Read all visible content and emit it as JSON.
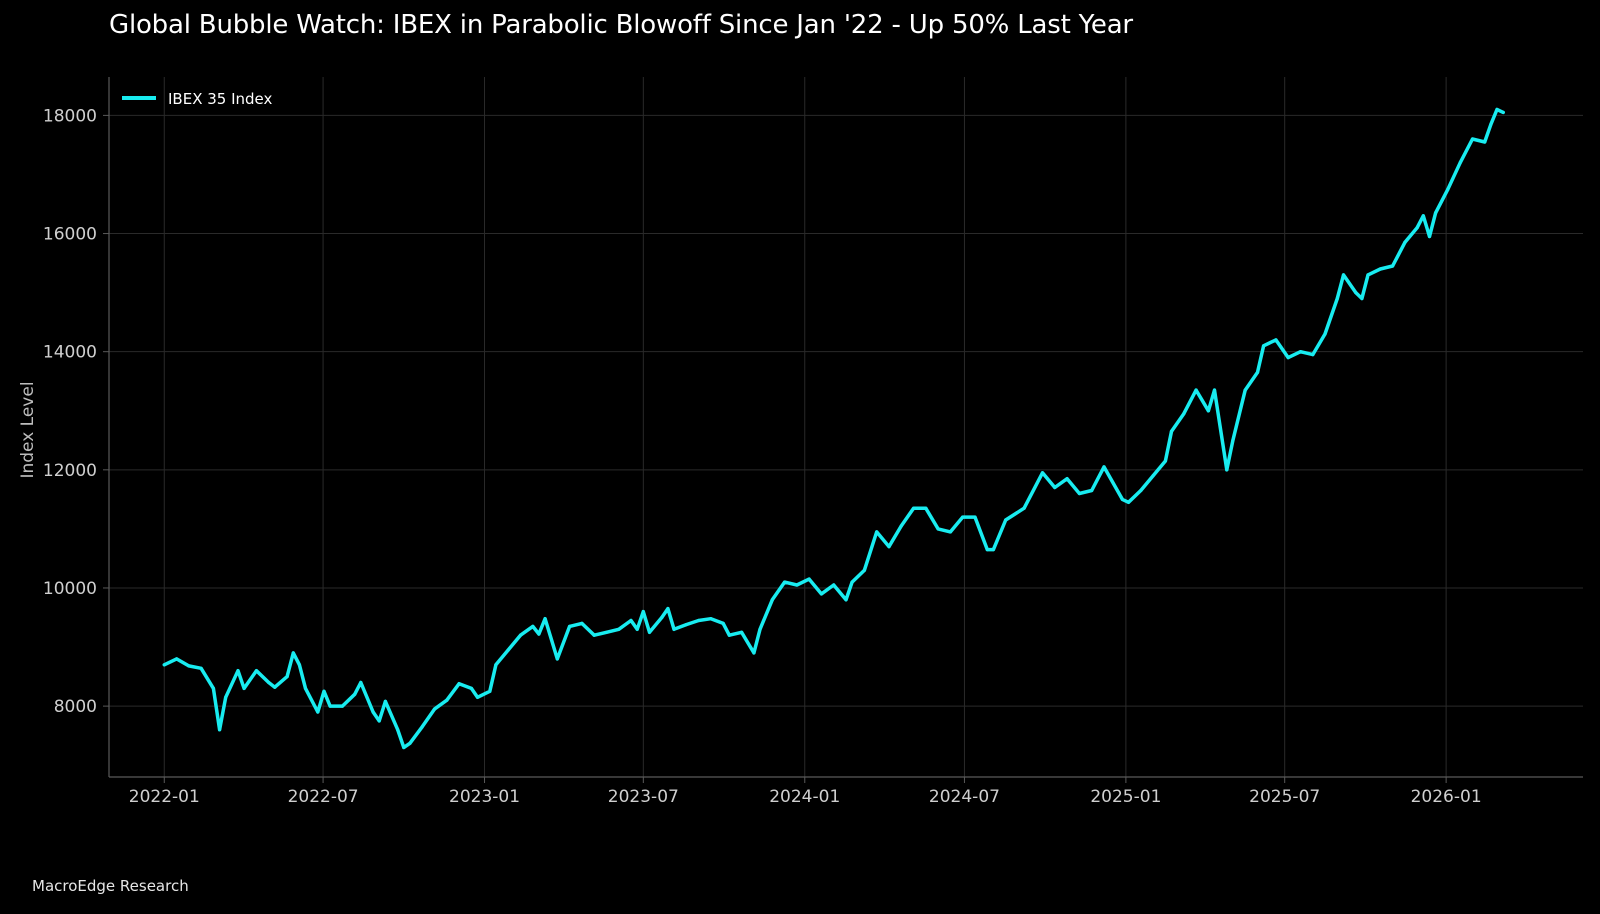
{
  "title": "Global Bubble Watch: IBEX in Parabolic Blowoff Since Jan '22 - Up 50% Last Year",
  "source": "MacroEdge Research",
  "colors": {
    "background": "#000000",
    "series": "#18ecf0",
    "grid": "#2a2a2a",
    "axis": "#5a5a5a"
  },
  "chart_data": {
    "type": "line",
    "title": "Global Bubble Watch: IBEX in Parabolic Blowoff Since Jan '22 - Up 50% Last Year",
    "xlabel": "",
    "ylabel": "Index Level",
    "grid": true,
    "legend": "top-left",
    "x_ticks": [
      "2022-01",
      "2022-07",
      "2023-01",
      "2023-07",
      "2024-01",
      "2024-07",
      "2025-01",
      "2025-07",
      "2026-01"
    ],
    "y_ticks": [
      8000,
      10000,
      12000,
      14000,
      16000,
      18000
    ],
    "xlim": [
      "2021-10-30",
      "2026-06-06"
    ],
    "ylim": [
      6800,
      18650
    ],
    "series": [
      {
        "name": "IBEX 35 Index",
        "color": "#18ecf0",
        "points": [
          [
            "2022-01-01",
            8700
          ],
          [
            "2022-01-15",
            8800
          ],
          [
            "2022-01-29",
            8680
          ],
          [
            "2022-02-12",
            8640
          ],
          [
            "2022-02-26",
            8300
          ],
          [
            "2022-03-05",
            7600
          ],
          [
            "2022-03-12",
            8150
          ],
          [
            "2022-03-26",
            8600
          ],
          [
            "2022-04-02",
            8300
          ],
          [
            "2022-04-16",
            8600
          ],
          [
            "2022-04-30",
            8400
          ],
          [
            "2022-05-07",
            8320
          ],
          [
            "2022-05-21",
            8500
          ],
          [
            "2022-05-28",
            8900
          ],
          [
            "2022-06-04",
            8700
          ],
          [
            "2022-06-11",
            8300
          ],
          [
            "2022-06-25",
            7900
          ],
          [
            "2022-07-02",
            8250
          ],
          [
            "2022-07-09",
            8000
          ],
          [
            "2022-07-23",
            8000
          ],
          [
            "2022-08-06",
            8200
          ],
          [
            "2022-08-13",
            8400
          ],
          [
            "2022-08-27",
            7900
          ],
          [
            "2022-09-03",
            7750
          ],
          [
            "2022-09-10",
            8080
          ],
          [
            "2022-09-24",
            7600
          ],
          [
            "2022-10-01",
            7300
          ],
          [
            "2022-10-08",
            7370
          ],
          [
            "2022-10-22",
            7650
          ],
          [
            "2022-11-05",
            7950
          ],
          [
            "2022-11-19",
            8100
          ],
          [
            "2022-12-03",
            8380
          ],
          [
            "2022-12-17",
            8300
          ],
          [
            "2022-12-24",
            8150
          ],
          [
            "2023-01-07",
            8250
          ],
          [
            "2023-01-14",
            8700
          ],
          [
            "2023-01-28",
            8950
          ],
          [
            "2023-02-11",
            9200
          ],
          [
            "2023-02-25",
            9350
          ],
          [
            "2023-03-04",
            9220
          ],
          [
            "2023-03-11",
            9480
          ],
          [
            "2023-03-25",
            8800
          ],
          [
            "2023-04-08",
            9350
          ],
          [
            "2023-04-22",
            9400
          ],
          [
            "2023-05-06",
            9200
          ],
          [
            "2023-05-20",
            9250
          ],
          [
            "2023-06-03",
            9300
          ],
          [
            "2023-06-17",
            9450
          ],
          [
            "2023-06-24",
            9300
          ],
          [
            "2023-07-01",
            9600
          ],
          [
            "2023-07-08",
            9250
          ],
          [
            "2023-07-22",
            9500
          ],
          [
            "2023-07-29",
            9650
          ],
          [
            "2023-08-05",
            9300
          ],
          [
            "2023-08-19",
            9380
          ],
          [
            "2023-09-02",
            9450
          ],
          [
            "2023-09-16",
            9480
          ],
          [
            "2023-09-30",
            9400
          ],
          [
            "2023-10-07",
            9200
          ],
          [
            "2023-10-21",
            9250
          ],
          [
            "2023-11-04",
            8900
          ],
          [
            "2023-11-11",
            9300
          ],
          [
            "2023-11-25",
            9800
          ],
          [
            "2023-12-09",
            10100
          ],
          [
            "2023-12-23",
            10050
          ],
          [
            "2024-01-06",
            10150
          ],
          [
            "2024-01-20",
            9900
          ],
          [
            "2024-02-03",
            10050
          ],
          [
            "2024-02-17",
            9800
          ],
          [
            "2024-02-24",
            10100
          ],
          [
            "2024-03-09",
            10300
          ],
          [
            "2024-03-23",
            10950
          ],
          [
            "2024-04-06",
            10700
          ],
          [
            "2024-04-20",
            11050
          ],
          [
            "2024-05-04",
            11350
          ],
          [
            "2024-05-18",
            11350
          ],
          [
            "2024-06-01",
            11000
          ],
          [
            "2024-06-15",
            10950
          ],
          [
            "2024-06-29",
            11200
          ],
          [
            "2024-07-13",
            11200
          ],
          [
            "2024-07-27",
            10650
          ],
          [
            "2024-08-03",
            10650
          ],
          [
            "2024-08-17",
            11150
          ],
          [
            "2024-09-07",
            11350
          ],
          [
            "2024-09-28",
            11950
          ],
          [
            "2024-10-12",
            11700
          ],
          [
            "2024-10-26",
            11850
          ],
          [
            "2024-11-09",
            11600
          ],
          [
            "2024-11-23",
            11650
          ],
          [
            "2024-12-07",
            12050
          ],
          [
            "2024-12-28",
            11500
          ],
          [
            "2025-01-04",
            11450
          ],
          [
            "2025-01-18",
            11650
          ],
          [
            "2025-02-01",
            11900
          ],
          [
            "2025-02-15",
            12150
          ],
          [
            "2025-02-22",
            12650
          ],
          [
            "2025-03-08",
            12950
          ],
          [
            "2025-03-22",
            13350
          ],
          [
            "2025-04-05",
            13000
          ],
          [
            "2025-04-12",
            13350
          ],
          [
            "2025-04-26",
            12000
          ],
          [
            "2025-05-03",
            12500
          ],
          [
            "2025-05-17",
            13350
          ],
          [
            "2025-05-31",
            13650
          ],
          [
            "2025-06-07",
            14100
          ],
          [
            "2025-06-21",
            14200
          ],
          [
            "2025-07-05",
            13900
          ],
          [
            "2025-07-19",
            14000
          ],
          [
            "2025-08-02",
            13950
          ],
          [
            "2025-08-16",
            14300
          ],
          [
            "2025-08-30",
            14900
          ],
          [
            "2025-09-06",
            15300
          ],
          [
            "2025-09-20",
            15000
          ],
          [
            "2025-09-27",
            14900
          ],
          [
            "2025-10-04",
            15300
          ],
          [
            "2025-10-18",
            15400
          ],
          [
            "2025-11-01",
            15450
          ],
          [
            "2025-11-15",
            15850
          ],
          [
            "2025-11-29",
            16100
          ],
          [
            "2025-12-06",
            16300
          ],
          [
            "2025-12-13",
            15950
          ],
          [
            "2025-12-20",
            16350
          ],
          [
            "2026-01-03",
            16750
          ],
          [
            "2026-01-17",
            17200
          ],
          [
            "2026-01-31",
            17600
          ],
          [
            "2026-02-14",
            17550
          ],
          [
            "2026-02-21",
            17850
          ],
          [
            "2026-02-28",
            18100
          ],
          [
            "2026-03-07",
            18050
          ]
        ]
      }
    ]
  }
}
